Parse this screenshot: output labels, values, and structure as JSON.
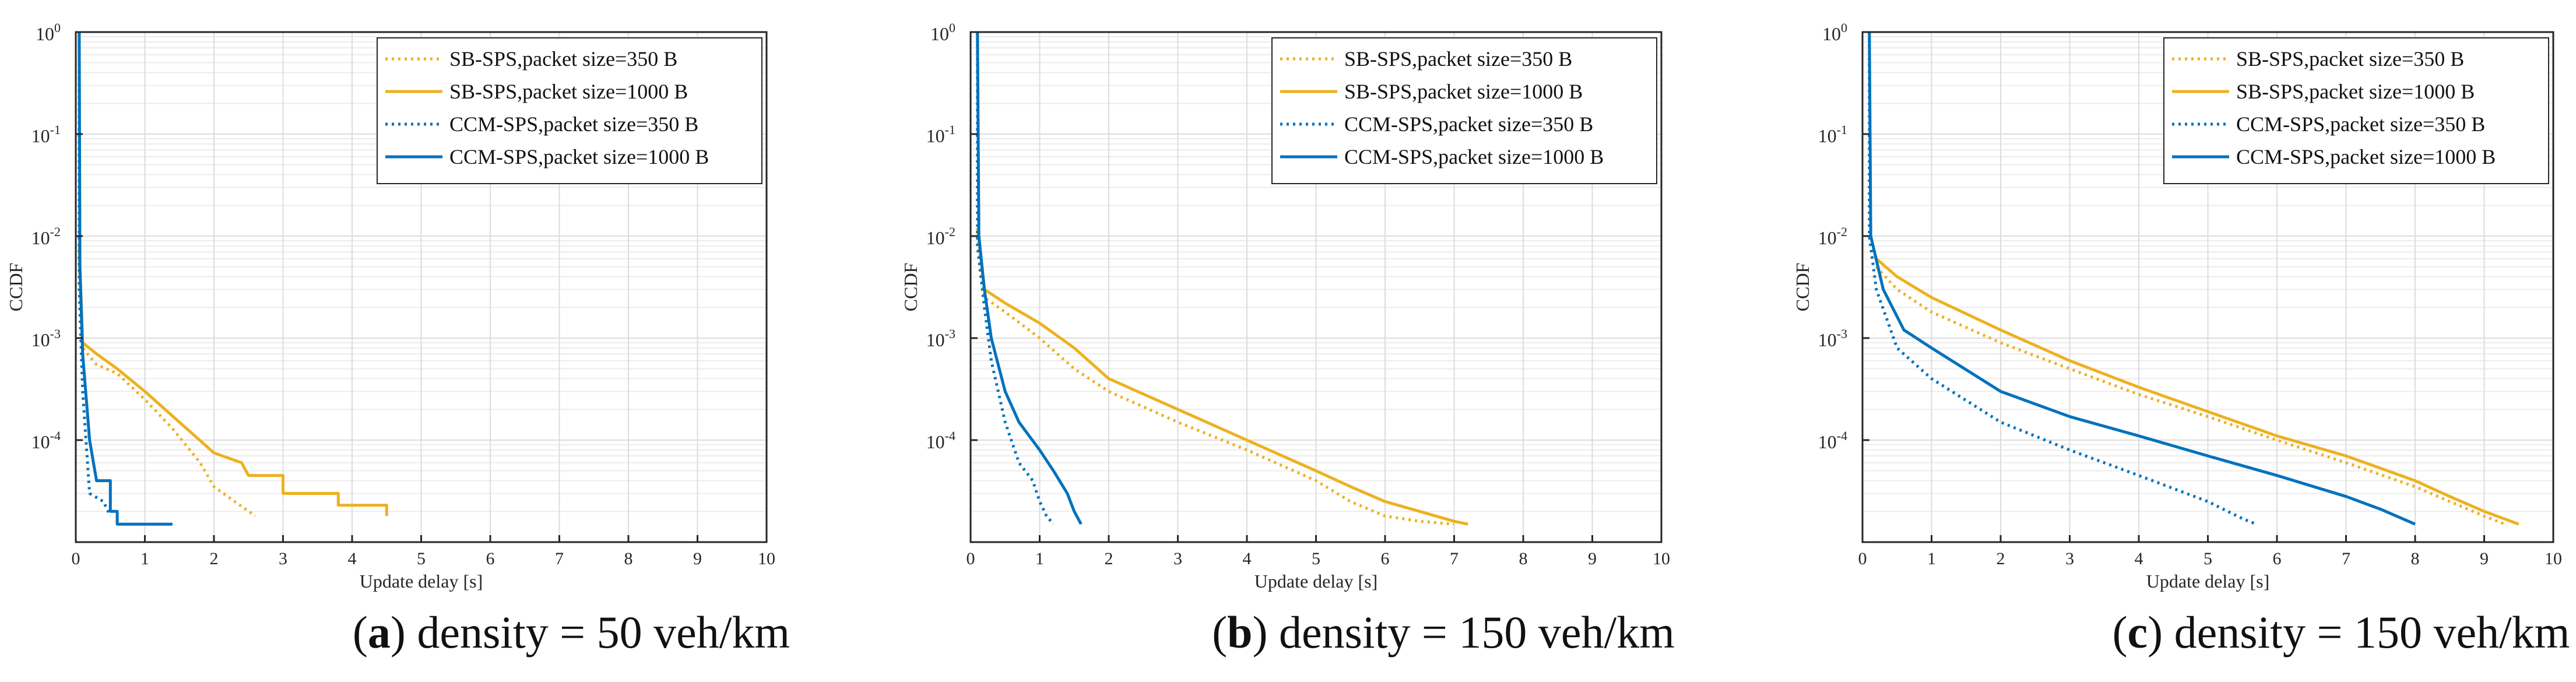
{
  "colors": {
    "sb": "#EDB120",
    "ccm": "#0072BD",
    "axis": "#262626",
    "grid": "#dcdcdc"
  },
  "captions": [
    {
      "letter": "a",
      "text": ") density = 50 veh/km"
    },
    {
      "letter": "b",
      "text": ") density = 150 veh/km"
    },
    {
      "letter": "c",
      "text": ") density = 150 veh/km"
    }
  ],
  "chart_data": [
    {
      "type": "line",
      "panel": "a",
      "xlabel": "Update delay [s]",
      "ylabel": "CCDF",
      "xlim": [
        0,
        10
      ],
      "ylim": [
        1e-05,
        1
      ],
      "yscale": "log",
      "xticks": [
        "0",
        "1",
        "2",
        "3",
        "4",
        "5",
        "6",
        "7",
        "8",
        "9",
        "10"
      ],
      "yticks": [
        {
          "base": "10",
          "exp": "0",
          "value": 1
        },
        {
          "base": "10",
          "exp": "-1",
          "value": 0.1
        },
        {
          "base": "10",
          "exp": "-2",
          "value": 0.01
        },
        {
          "base": "10",
          "exp": "-3",
          "value": 0.001
        },
        {
          "base": "10",
          "exp": "-4",
          "value": 0.0001
        }
      ],
      "grid": true,
      "legend_position": "top-right",
      "series": [
        {
          "name": "SB-SPS,packet size=350 B",
          "color": "sb",
          "style": "dotted",
          "points": [
            [
              0.05,
              0.006
            ],
            [
              0.1,
              0.0008
            ],
            [
              0.3,
              0.00055
            ],
            [
              0.6,
              0.00045
            ],
            [
              1.0,
              0.00025
            ],
            [
              1.4,
              0.00013
            ],
            [
              1.8,
              6e-05
            ],
            [
              2.0,
              3.5e-05
            ],
            [
              2.3,
              2.5e-05
            ],
            [
              2.6,
              1.8e-05
            ]
          ]
        },
        {
          "name": "SB-SPS,packet size=1000 B",
          "color": "sb",
          "style": "solid",
          "points": [
            [
              0.05,
              0.008
            ],
            [
              0.1,
              0.0009
            ],
            [
              0.3,
              0.0007
            ],
            [
              0.6,
              0.0005
            ],
            [
              1.0,
              0.0003
            ],
            [
              1.5,
              0.00015
            ],
            [
              2.0,
              7.5e-05
            ],
            [
              2.4,
              6e-05
            ],
            [
              2.5,
              4.5e-05
            ],
            [
              3.0,
              4.5e-05
            ],
            [
              3.0,
              3e-05
            ],
            [
              3.8,
              3e-05
            ],
            [
              3.8,
              2.3e-05
            ],
            [
              4.5,
              2.3e-05
            ],
            [
              4.5,
              1.8e-05
            ]
          ]
        },
        {
          "name": "CCM-SPS,packet size=350 B",
          "color": "ccm",
          "style": "dotted",
          "points": [
            [
              0.05,
              1
            ],
            [
              0.05,
              0.003
            ],
            [
              0.1,
              0.0003
            ],
            [
              0.2,
              3e-05
            ],
            [
              0.4,
              2.5e-05
            ],
            [
              0.5,
              1.8e-05
            ]
          ]
        },
        {
          "name": "CCM-SPS,packet size=1000 B",
          "color": "ccm",
          "style": "solid",
          "points": [
            [
              0.05,
              1
            ],
            [
              0.06,
              0.005
            ],
            [
              0.1,
              0.0007
            ],
            [
              0.2,
              0.0001
            ],
            [
              0.3,
              4e-05
            ],
            [
              0.5,
              4e-05
            ],
            [
              0.5,
              2e-05
            ],
            [
              0.6,
              2e-05
            ],
            [
              0.6,
              1.5e-05
            ],
            [
              1.4,
              1.5e-05
            ]
          ]
        }
      ]
    },
    {
      "type": "line",
      "panel": "b",
      "xlabel": "Update delay [s]",
      "ylabel": "CCDF",
      "xlim": [
        0,
        10
      ],
      "ylim": [
        1e-05,
        1
      ],
      "yscale": "log",
      "xticks": [
        "0",
        "1",
        "2",
        "3",
        "4",
        "5",
        "6",
        "7",
        "8",
        "9",
        "10"
      ],
      "yticks": [
        {
          "base": "10",
          "exp": "0",
          "value": 1
        },
        {
          "base": "10",
          "exp": "-1",
          "value": 0.1
        },
        {
          "base": "10",
          "exp": "-2",
          "value": 0.01
        },
        {
          "base": "10",
          "exp": "-3",
          "value": 0.001
        },
        {
          "base": "10",
          "exp": "-4",
          "value": 0.0001
        }
      ],
      "grid": true,
      "legend_position": "top-right",
      "series": [
        {
          "name": "SB-SPS,packet size=350 B",
          "color": "sb",
          "style": "dotted",
          "points": [
            [
              0.1,
              0.01
            ],
            [
              0.2,
              0.0025
            ],
            [
              0.5,
              0.0018
            ],
            [
              1.0,
              0.001
            ],
            [
              1.5,
              0.0005
            ],
            [
              2.0,
              0.0003
            ],
            [
              3.0,
              0.00015
            ],
            [
              4.0,
              8e-05
            ],
            [
              5.0,
              4e-05
            ],
            [
              5.5,
              2.5e-05
            ],
            [
              6.0,
              1.8e-05
            ],
            [
              6.5,
              1.6e-05
            ],
            [
              7.0,
              1.5e-05
            ]
          ]
        },
        {
          "name": "SB-SPS,packet size=1000 B",
          "color": "sb",
          "style": "solid",
          "points": [
            [
              0.1,
              0.012
            ],
            [
              0.2,
              0.003
            ],
            [
              0.5,
              0.0022
            ],
            [
              1.0,
              0.0014
            ],
            [
              1.5,
              0.0008
            ],
            [
              2.0,
              0.0004
            ],
            [
              3.0,
              0.0002
            ],
            [
              4.0,
              0.0001
            ],
            [
              5.0,
              5e-05
            ],
            [
              5.5,
              3.5e-05
            ],
            [
              6.0,
              2.5e-05
            ],
            [
              6.5,
              2e-05
            ],
            [
              7.0,
              1.6e-05
            ],
            [
              7.2,
              1.5e-05
            ]
          ]
        },
        {
          "name": "CCM-SPS,packet size=350 B",
          "color": "ccm",
          "style": "dotted",
          "points": [
            [
              0.1,
              1
            ],
            [
              0.1,
              0.008
            ],
            [
              0.2,
              0.002
            ],
            [
              0.3,
              0.0006
            ],
            [
              0.5,
              0.00015
            ],
            [
              0.7,
              6e-05
            ],
            [
              0.9,
              4e-05
            ],
            [
              1.0,
              2.5e-05
            ],
            [
              1.1,
              1.8e-05
            ],
            [
              1.2,
              1.5e-05
            ]
          ]
        },
        {
          "name": "CCM-SPS,packet size=1000 B",
          "color": "ccm",
          "style": "solid",
          "points": [
            [
              0.1,
              1
            ],
            [
              0.12,
              0.01
            ],
            [
              0.2,
              0.003
            ],
            [
              0.3,
              0.001
            ],
            [
              0.5,
              0.0003
            ],
            [
              0.7,
              0.00015
            ],
            [
              1.0,
              8e-05
            ],
            [
              1.2,
              5e-05
            ],
            [
              1.4,
              3e-05
            ],
            [
              1.5,
              2e-05
            ],
            [
              1.6,
              1.5e-05
            ]
          ]
        }
      ]
    },
    {
      "type": "line",
      "panel": "c",
      "xlabel": "Update delay [s]",
      "ylabel": "CCDF",
      "xlim": [
        0,
        10
      ],
      "ylim": [
        1e-05,
        1
      ],
      "yscale": "log",
      "xticks": [
        "0",
        "1",
        "2",
        "3",
        "4",
        "5",
        "6",
        "7",
        "8",
        "9",
        "10"
      ],
      "yticks": [
        {
          "base": "10",
          "exp": "0",
          "value": 1
        },
        {
          "base": "10",
          "exp": "-1",
          "value": 0.1
        },
        {
          "base": "10",
          "exp": "-2",
          "value": 0.01
        },
        {
          "base": "10",
          "exp": "-3",
          "value": 0.001
        },
        {
          "base": "10",
          "exp": "-4",
          "value": 0.0001
        }
      ],
      "grid": true,
      "legend_position": "top-right",
      "series": [
        {
          "name": "SB-SPS,packet size=350 B",
          "color": "sb",
          "style": "dotted",
          "points": [
            [
              0.2,
              0.005
            ],
            [
              0.5,
              0.003
            ],
            [
              1.0,
              0.0018
            ],
            [
              2.0,
              0.0009
            ],
            [
              3.0,
              0.0005
            ],
            [
              4.0,
              0.00028
            ],
            [
              5.0,
              0.00017
            ],
            [
              6.0,
              0.0001
            ],
            [
              7.0,
              6e-05
            ],
            [
              8.0,
              3.5e-05
            ],
            [
              8.5,
              2.5e-05
            ],
            [
              9.0,
              1.8e-05
            ],
            [
              9.3,
              1.5e-05
            ]
          ]
        },
        {
          "name": "SB-SPS,packet size=1000 B",
          "color": "sb",
          "style": "solid",
          "points": [
            [
              0.2,
              0.006
            ],
            [
              0.5,
              0.004
            ],
            [
              1.0,
              0.0025
            ],
            [
              2.0,
              0.0012
            ],
            [
              3.0,
              0.0006
            ],
            [
              4.0,
              0.00033
            ],
            [
              5.0,
              0.00019
            ],
            [
              6.0,
              0.00011
            ],
            [
              7.0,
              7e-05
            ],
            [
              8.0,
              4e-05
            ],
            [
              8.5,
              2.8e-05
            ],
            [
              9.0,
              2e-05
            ],
            [
              9.5,
              1.5e-05
            ]
          ]
        },
        {
          "name": "CCM-SPS,packet size=350 B",
          "color": "ccm",
          "style": "dotted",
          "points": [
            [
              0.1,
              1
            ],
            [
              0.1,
              0.01
            ],
            [
              0.2,
              0.003
            ],
            [
              0.5,
              0.0008
            ],
            [
              1.0,
              0.0004
            ],
            [
              2.0,
              0.00015
            ],
            [
              3.0,
              8e-05
            ],
            [
              4.0,
              4.5e-05
            ],
            [
              5.0,
              2.5e-05
            ],
            [
              5.5,
              1.7e-05
            ],
            [
              5.7,
              1.5e-05
            ]
          ]
        },
        {
          "name": "CCM-SPS,packet size=1000 B",
          "color": "ccm",
          "style": "solid",
          "points": [
            [
              0.1,
              1
            ],
            [
              0.12,
              0.01
            ],
            [
              0.3,
              0.003
            ],
            [
              0.6,
              0.0012
            ],
            [
              1.0,
              0.0008
            ],
            [
              2.0,
              0.0003
            ],
            [
              3.0,
              0.00017
            ],
            [
              4.0,
              0.00011
            ],
            [
              5.0,
              7e-05
            ],
            [
              6.0,
              4.5e-05
            ],
            [
              7.0,
              2.8e-05
            ],
            [
              7.5,
              2.1e-05
            ],
            [
              8.0,
              1.5e-05
            ]
          ]
        }
      ]
    }
  ]
}
